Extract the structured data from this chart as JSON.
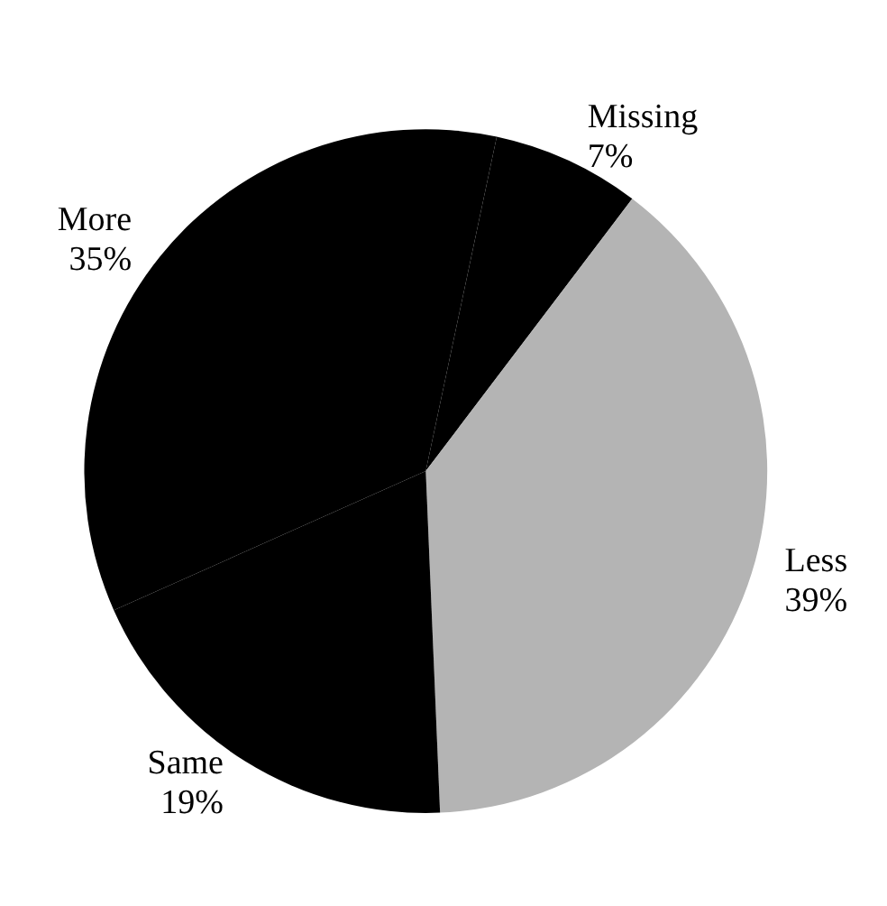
{
  "chart_data": {
    "type": "pie",
    "categories": [
      "Missing",
      "Less",
      "Same",
      "More"
    ],
    "values": [
      7,
      39,
      19,
      35
    ],
    "value_labels": [
      "7%",
      "39%",
      "19%",
      "35%"
    ],
    "colors": [
      "#000000",
      "#b4b4b4",
      "#000000",
      "#000000"
    ],
    "legend": false
  }
}
